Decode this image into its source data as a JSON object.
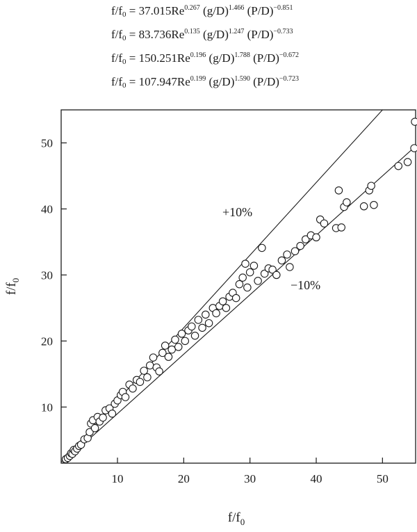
{
  "equations": [
    {
      "lhs_base": "f/f",
      "lhs_sub": "0",
      "eq": " = ",
      "coef": "37.015",
      "re": "Re",
      "re_exp": "0.267",
      "g": " (g/D)",
      "g_exp": "1.466",
      "p": " (P/D)",
      "p_exp": "−0.851"
    },
    {
      "lhs_base": "f/f",
      "lhs_sub": "0",
      "eq": " = ",
      "coef": "83.736",
      "re": "Re",
      "re_exp": "0.135",
      "g": " (g/D)",
      "g_exp": "1.247",
      "p": " (P/D)",
      "p_exp": "−0.733"
    },
    {
      "lhs_base": "f/f",
      "lhs_sub": "0",
      "eq": " = ",
      "coef": "150.251",
      "re": "Re",
      "re_exp": "0.196",
      "g": " (g/D)",
      "g_exp": "1.788",
      "p": " (P/D)",
      "p_exp": "−0.672"
    },
    {
      "lhs_base": "f/f",
      "lhs_sub": "0",
      "eq": " = ",
      "coef": "107.947",
      "re": "Re",
      "re_exp": "0.199",
      "g": " (g/D)",
      "g_exp": "1.590",
      "p": " (P/D)",
      "p_exp": "−0.723"
    }
  ],
  "chart_data": {
    "type": "scatter",
    "xlabel": {
      "base": "f/f",
      "sub": "0"
    },
    "ylabel": {
      "base": "f/f",
      "sub": "0"
    },
    "xlim": [
      1.5,
      55
    ],
    "ylim": [
      1.5,
      55
    ],
    "xticks": [
      10,
      20,
      30,
      40,
      50
    ],
    "yticks": [
      10,
      20,
      30,
      40,
      50
    ],
    "grid": false,
    "reference_lines": [
      {
        "label": "+10%",
        "slope": 1.1
      },
      {
        "label": "−10%",
        "slope": 0.9
      }
    ],
    "points": [
      [
        2.2,
        2.1
      ],
      [
        2.5,
        2.3
      ],
      [
        2.8,
        2.6
      ],
      [
        3.0,
        3.0
      ],
      [
        3.2,
        2.9
      ],
      [
        3.4,
        3.5
      ],
      [
        3.6,
        3.3
      ],
      [
        3.9,
        3.7
      ],
      [
        4.2,
        4.1
      ],
      [
        4.5,
        4.3
      ],
      [
        5.0,
        5.1
      ],
      [
        5.5,
        5.3
      ],
      [
        5.8,
        6.2
      ],
      [
        6.0,
        7.5
      ],
      [
        6.3,
        8.0
      ],
      [
        6.6,
        6.8
      ],
      [
        7.0,
        8.5
      ],
      [
        7.3,
        7.8
      ],
      [
        7.8,
        8.4
      ],
      [
        8.2,
        9.5
      ],
      [
        8.8,
        9.8
      ],
      [
        9.2,
        9.0
      ],
      [
        9.6,
        10.5
      ],
      [
        10.0,
        11.0
      ],
      [
        10.5,
        11.8
      ],
      [
        10.8,
        12.3
      ],
      [
        11.2,
        11.5
      ],
      [
        11.8,
        13.4
      ],
      [
        12.3,
        12.8
      ],
      [
        12.9,
        14.1
      ],
      [
        13.4,
        13.8
      ],
      [
        14.0,
        15.5
      ],
      [
        14.5,
        14.5
      ],
      [
        14.9,
        16.3
      ],
      [
        15.4,
        17.5
      ],
      [
        15.9,
        16.0
      ],
      [
        16.3,
        15.4
      ],
      [
        16.8,
        18.2
      ],
      [
        17.2,
        19.3
      ],
      [
        17.7,
        17.6
      ],
      [
        18.2,
        18.7
      ],
      [
        18.7,
        20.2
      ],
      [
        19.2,
        19.1
      ],
      [
        19.7,
        21.1
      ],
      [
        20.2,
        20.0
      ],
      [
        20.7,
        21.6
      ],
      [
        21.2,
        22.2
      ],
      [
        21.7,
        20.8
      ],
      [
        22.2,
        23.2
      ],
      [
        22.8,
        22.0
      ],
      [
        23.3,
        24.0
      ],
      [
        23.8,
        22.7
      ],
      [
        24.4,
        25.0
      ],
      [
        24.9,
        24.2
      ],
      [
        25.4,
        25.3
      ],
      [
        25.9,
        26.0
      ],
      [
        26.4,
        25.0
      ],
      [
        26.9,
        26.7
      ],
      [
        27.4,
        27.3
      ],
      [
        27.9,
        26.5
      ],
      [
        28.4,
        28.6
      ],
      [
        28.9,
        29.6
      ],
      [
        29.3,
        31.7
      ],
      [
        29.6,
        28.1
      ],
      [
        30.0,
        30.4
      ],
      [
        30.6,
        31.4
      ],
      [
        31.2,
        29.1
      ],
      [
        31.8,
        34.1
      ],
      [
        32.2,
        30.2
      ],
      [
        32.8,
        31.0
      ],
      [
        33.4,
        30.8
      ],
      [
        34.0,
        30.0
      ],
      [
        34.8,
        32.2
      ],
      [
        35.6,
        33.1
      ],
      [
        36.0,
        31.2
      ],
      [
        36.8,
        33.6
      ],
      [
        37.6,
        34.4
      ],
      [
        38.4,
        35.4
      ],
      [
        39.2,
        36.0
      ],
      [
        40.0,
        35.7
      ],
      [
        40.6,
        38.4
      ],
      [
        41.2,
        37.8
      ],
      [
        43.0,
        37.1
      ],
      [
        43.4,
        42.8
      ],
      [
        43.8,
        37.2
      ],
      [
        44.2,
        40.3
      ],
      [
        44.6,
        41.0
      ],
      [
        47.2,
        40.4
      ],
      [
        48.0,
        42.8
      ],
      [
        48.3,
        43.5
      ],
      [
        48.7,
        40.6
      ],
      [
        52.4,
        46.5
      ],
      [
        53.8,
        47.1
      ],
      [
        54.8,
        49.2
      ],
      [
        54.9,
        53.2
      ]
    ]
  }
}
